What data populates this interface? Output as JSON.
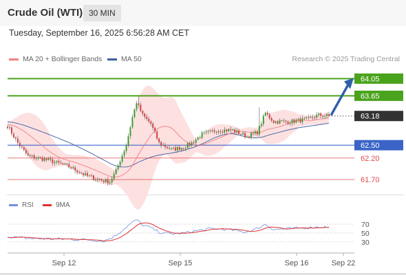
{
  "header": {
    "title": "Crude Oil (WTI)",
    "timeframe": "30 MIN"
  },
  "datetime": "Tuesday, September 16, 2025 6:56:28 AM CET",
  "legend": {
    "ma20": "MA 20 + Bollinger Bands",
    "ma50": "MA 50"
  },
  "credit": "Research © 2025 Trading Central",
  "rsi_legend": {
    "rsi": "RSI",
    "ma9": "9MA"
  },
  "colors": {
    "target_green": "#4aa31c",
    "pivot_blue": "#3b64c8",
    "support_red": "#e04a4a",
    "current_price_bg": "#333333",
    "bollinger_fill": "#fde0e0",
    "ma20": "#f08080",
    "ma50": "#3a5fa0",
    "candle_up": "#3a9c2e",
    "candle_down": "#d24040",
    "arrow": "#2f5fa8",
    "rsi": "#6f8fdc",
    "rsi_ma": "#e03030"
  },
  "chart_data": {
    "type": "candlestick",
    "instrument": "Crude Oil (WTI)",
    "interval": "30 MIN",
    "y_range": [
      61.35,
      64.28
    ],
    "x_labels": [
      "Sep 12",
      "Sep 15",
      "Sep 16",
      "Sep 22"
    ],
    "levels": [
      {
        "value": 64.05,
        "label": "64.05",
        "role": "target"
      },
      {
        "value": 63.65,
        "label": "63.65",
        "role": "target"
      },
      {
        "value": 63.18,
        "label": "63.18",
        "role": "current"
      },
      {
        "value": 62.5,
        "label": "62.50",
        "role": "pivot"
      },
      {
        "value": 62.2,
        "label": "62.20",
        "role": "support"
      },
      {
        "value": 61.7,
        "label": "61.70",
        "role": "support"
      }
    ],
    "anchors": [
      {
        "i": 0,
        "v": 62.95
      },
      {
        "i": 5,
        "v": 62.55
      },
      {
        "i": 10,
        "v": 62.25
      },
      {
        "i": 20,
        "v": 62.15
      },
      {
        "i": 30,
        "v": 62.0
      },
      {
        "i": 38,
        "v": 61.8
      },
      {
        "i": 46,
        "v": 61.68
      },
      {
        "i": 50,
        "v": 61.65
      },
      {
        "i": 53,
        "v": 61.9
      },
      {
        "i": 55,
        "v": 62.15
      },
      {
        "i": 58,
        "v": 62.5
      },
      {
        "i": 61,
        "v": 63.15
      },
      {
        "i": 63,
        "v": 63.5
      },
      {
        "i": 66,
        "v": 63.2
      },
      {
        "i": 70,
        "v": 63.0
      },
      {
        "i": 74,
        "v": 62.55
      },
      {
        "i": 80,
        "v": 62.4
      },
      {
        "i": 86,
        "v": 62.45
      },
      {
        "i": 90,
        "v": 62.55
      },
      {
        "i": 95,
        "v": 62.75
      },
      {
        "i": 102,
        "v": 62.85
      },
      {
        "i": 110,
        "v": 62.85
      },
      {
        "i": 117,
        "v": 62.7
      },
      {
        "i": 122,
        "v": 62.8
      },
      {
        "i": 126,
        "v": 63.25
      },
      {
        "i": 130,
        "v": 63.05
      },
      {
        "i": 138,
        "v": 63.05
      },
      {
        "i": 146,
        "v": 63.1
      },
      {
        "i": 152,
        "v": 63.2
      },
      {
        "i": 157,
        "v": 63.18
      }
    ],
    "rsi": {
      "ticks": [
        70,
        50,
        30
      ],
      "anchors": [
        {
          "i": 0,
          "v": 42
        },
        {
          "i": 10,
          "v": 38
        },
        {
          "i": 20,
          "v": 37
        },
        {
          "i": 30,
          "v": 36
        },
        {
          "i": 40,
          "v": 35
        },
        {
          "i": 47,
          "v": 32
        },
        {
          "i": 52,
          "v": 42
        },
        {
          "i": 57,
          "v": 60
        },
        {
          "i": 61,
          "v": 74
        },
        {
          "i": 63,
          "v": 80
        },
        {
          "i": 66,
          "v": 68
        },
        {
          "i": 70,
          "v": 62
        },
        {
          "i": 74,
          "v": 52
        },
        {
          "i": 80,
          "v": 48
        },
        {
          "i": 86,
          "v": 50
        },
        {
          "i": 92,
          "v": 55
        },
        {
          "i": 100,
          "v": 60
        },
        {
          "i": 108,
          "v": 58
        },
        {
          "i": 116,
          "v": 52
        },
        {
          "i": 122,
          "v": 60
        },
        {
          "i": 126,
          "v": 70
        },
        {
          "i": 130,
          "v": 58
        },
        {
          "i": 138,
          "v": 60
        },
        {
          "i": 146,
          "v": 62
        },
        {
          "i": 152,
          "v": 64
        },
        {
          "i": 157,
          "v": 63
        }
      ]
    }
  }
}
